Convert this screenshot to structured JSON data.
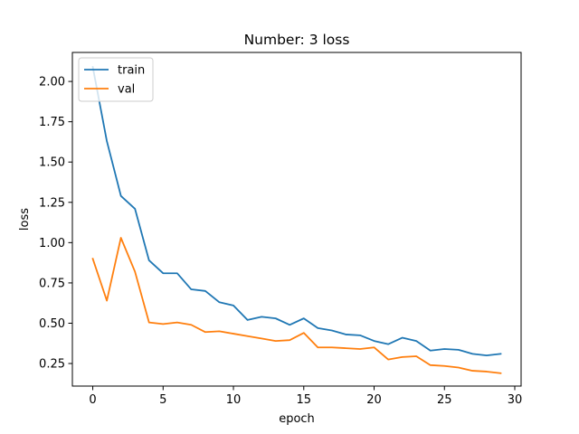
{
  "chart_data": {
    "type": "line",
    "title": "Number: 3 loss",
    "xlabel": "epoch",
    "ylabel": "loss",
    "xlim": [
      -1.45,
      30.45
    ],
    "ylim": [
      0.11,
      2.18
    ],
    "xticks": [
      0,
      5,
      10,
      15,
      20,
      25,
      30
    ],
    "yticks": [
      0.25,
      0.5,
      0.75,
      1.0,
      1.25,
      1.5,
      1.75,
      2.0
    ],
    "ytick_labels": [
      "0.25",
      "0.50",
      "0.75",
      "1.00",
      "1.25",
      "1.50",
      "1.75",
      "2.00"
    ],
    "grid": false,
    "legend_position": "top-left",
    "x": [
      0,
      1,
      2,
      3,
      4,
      5,
      6,
      7,
      8,
      9,
      10,
      11,
      12,
      13,
      14,
      15,
      16,
      17,
      18,
      19,
      20,
      21,
      22,
      23,
      24,
      25,
      26,
      27,
      28,
      29
    ],
    "series": [
      {
        "name": "train",
        "color": "#1f77b4",
        "values": [
          2.09,
          1.63,
          1.29,
          1.21,
          0.89,
          0.81,
          0.81,
          0.71,
          0.7,
          0.63,
          0.61,
          0.52,
          0.54,
          0.53,
          0.49,
          0.53,
          0.47,
          0.455,
          0.43,
          0.425,
          0.39,
          0.37,
          0.41,
          0.39,
          0.33,
          0.34,
          0.335,
          0.31,
          0.3,
          0.31
        ]
      },
      {
        "name": "val",
        "color": "#ff7f0e",
        "values": [
          0.9,
          0.64,
          1.03,
          0.82,
          0.505,
          0.495,
          0.505,
          0.49,
          0.445,
          0.45,
          0.435,
          0.42,
          0.405,
          0.39,
          0.395,
          0.44,
          0.35,
          0.35,
          0.345,
          0.34,
          0.35,
          0.275,
          0.29,
          0.295,
          0.24,
          0.235,
          0.225,
          0.205,
          0.2,
          0.19
        ]
      }
    ]
  }
}
